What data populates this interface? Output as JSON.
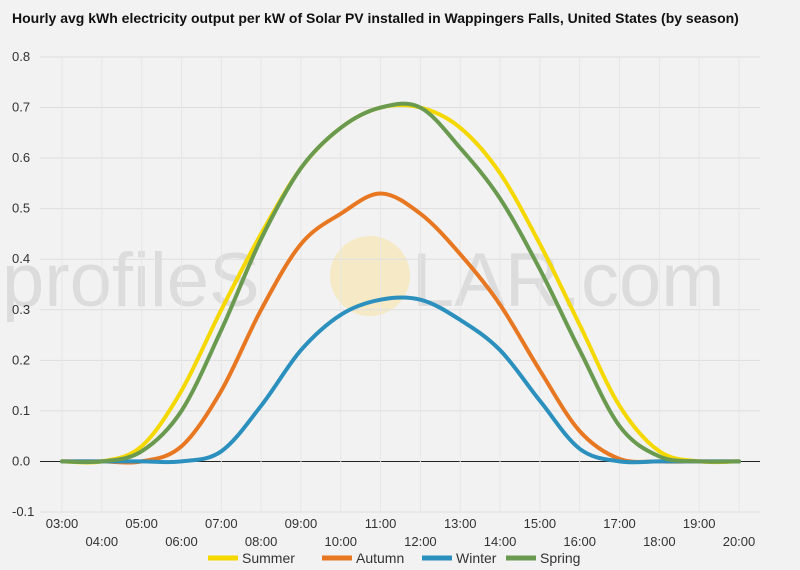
{
  "chart_data": {
    "type": "line",
    "title": "Hourly avg kWh electricity output per kW of Solar PV installed in Wappingers Falls, United States (by season)",
    "xlabel": "",
    "ylabel": "",
    "ylim": [
      -0.1,
      0.8
    ],
    "yticks": [
      "-0.1",
      "0.0",
      "0.1",
      "0.2",
      "0.3",
      "0.4",
      "0.5",
      "0.6",
      "0.7",
      "0.8"
    ],
    "x": [
      "03:00",
      "04:00",
      "05:00",
      "06:00",
      "07:00",
      "08:00",
      "09:00",
      "10:00",
      "11:00",
      "12:00",
      "13:00",
      "14:00",
      "15:00",
      "16:00",
      "17:00",
      "18:00",
      "19:00",
      "20:00"
    ],
    "grid": true,
    "legend_position": "bottom",
    "series": [
      {
        "name": "Summer",
        "color": "#f5d800",
        "values": [
          0.0,
          0.0,
          0.03,
          0.14,
          0.3,
          0.45,
          0.58,
          0.66,
          0.7,
          0.7,
          0.66,
          0.57,
          0.43,
          0.27,
          0.11,
          0.02,
          0.0,
          0.0
        ]
      },
      {
        "name": "Autumn",
        "color": "#e87722",
        "values": [
          0.0,
          0.0,
          0.0,
          0.03,
          0.14,
          0.3,
          0.43,
          0.49,
          0.53,
          0.49,
          0.41,
          0.31,
          0.18,
          0.06,
          0.005,
          0.0,
          0.0,
          0.0
        ]
      },
      {
        "name": "Winter",
        "color": "#2b90bd",
        "values": [
          0.0,
          0.0,
          0.0,
          0.0,
          0.02,
          0.11,
          0.22,
          0.29,
          0.32,
          0.32,
          0.28,
          0.22,
          0.12,
          0.025,
          0.0,
          0.0,
          0.0,
          0.0
        ]
      },
      {
        "name": "Spring",
        "color": "#6a9a50",
        "values": [
          0.0,
          0.0,
          0.02,
          0.1,
          0.26,
          0.44,
          0.58,
          0.66,
          0.7,
          0.7,
          0.62,
          0.52,
          0.38,
          0.22,
          0.07,
          0.01,
          0.0,
          0.0
        ]
      }
    ]
  },
  "watermark": {
    "text_left": "profileS",
    "text_right": "LAR.com",
    "sun_color": "#f7e3a0"
  }
}
